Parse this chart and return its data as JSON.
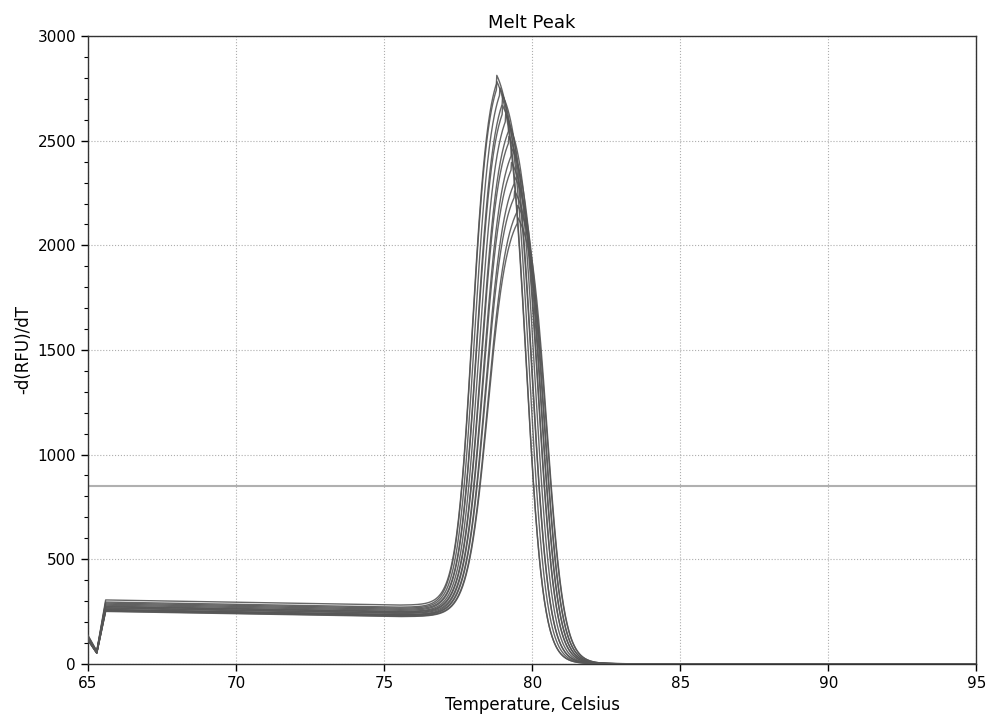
{
  "title": "Melt Peak",
  "xlabel": "Temperature, Celsius",
  "ylabel": "-d(RFU)/dT",
  "xlim": [
    65,
    95
  ],
  "ylim": [
    0,
    3000
  ],
  "xticks": [
    65,
    70,
    75,
    80,
    85,
    90,
    95
  ],
  "yticks": [
    0,
    500,
    1000,
    1500,
    2000,
    2500,
    3000
  ],
  "threshold_line_y": 850,
  "threshold_color": "#b0b0b0",
  "curve_color": "#555555",
  "background_color": "#ffffff",
  "grid_color": "#999999",
  "num_curves": 14,
  "peak_heights": [
    2900,
    2870,
    2840,
    2800,
    2750,
    2710,
    2660,
    2600,
    2540,
    2470,
    2400,
    2330,
    2260,
    2200
  ],
  "peak_temps": [
    78.8,
    78.8,
    78.9,
    79.0,
    79.0,
    79.1,
    79.2,
    79.2,
    79.3,
    79.3,
    79.4,
    79.4,
    79.5,
    79.5
  ],
  "baseline_vals": [
    305,
    295,
    290,
    285,
    280,
    275,
    272,
    268,
    265,
    260,
    258,
    255,
    252,
    250
  ],
  "title_fontsize": 13,
  "axis_label_fontsize": 12,
  "tick_fontsize": 11
}
